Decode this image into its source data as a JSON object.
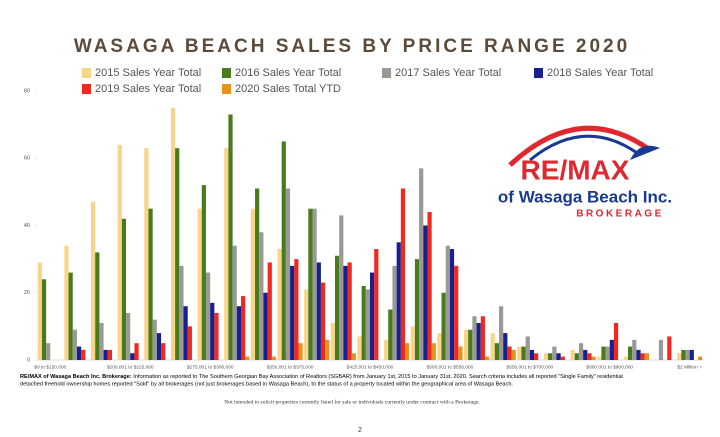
{
  "chart_data": {
    "type": "bar",
    "title": "WASAGA BEACH SALES BY PRICE RANGE 2020",
    "categories": [
      "$0 to $150,000",
      null,
      null,
      "$200,001 to $225,000",
      null,
      null,
      "$275,001 to $300,000",
      null,
      null,
      "$350,001 to $375,000",
      null,
      null,
      "$425,001 to $450,000",
      null,
      null,
      "$500,001 to $550,000",
      null,
      null,
      "$650,001 to $700,000",
      null,
      null,
      "$800,001 to $900,000",
      null,
      null,
      "$2 Million +"
    ],
    "series": [
      {
        "name": "2015 Sales Year Total",
        "color": "#f9d58a",
        "values": [
          29,
          34,
          47,
          64,
          63,
          75,
          45,
          63,
          45,
          33,
          21,
          11,
          7,
          6,
          10,
          8,
          9,
          8,
          4,
          2,
          3,
          1,
          1,
          0,
          2
        ]
      },
      {
        "name": "2016 Sales Year Total",
        "color": "#4a7a1e",
        "values": [
          24,
          26,
          32,
          42,
          45,
          63,
          52,
          73,
          51,
          65,
          45,
          31,
          22,
          15,
          30,
          20,
          9,
          5,
          4,
          2,
          2,
          4,
          4,
          0,
          3
        ]
      },
      {
        "name": "2017 Sales Year Total",
        "color": "#9a9a94",
        "values": [
          5,
          9,
          11,
          14,
          12,
          28,
          26,
          34,
          38,
          51,
          45,
          43,
          21,
          28,
          57,
          34,
          13,
          16,
          7,
          4,
          5,
          4,
          6,
          6,
          3
        ]
      },
      {
        "name": "2018 Sales Year Total",
        "color": "#1a1f8f",
        "values": [
          0,
          4,
          3,
          2,
          8,
          16,
          17,
          16,
          20,
          28,
          29,
          28,
          26,
          35,
          40,
          33,
          11,
          8,
          3,
          2,
          3,
          6,
          3,
          0,
          3
        ]
      },
      {
        "name": "2019 Sales Year Total",
        "color": "#f0281e",
        "values": [
          0,
          3,
          3,
          5,
          5,
          10,
          14,
          19,
          29,
          30,
          23,
          29,
          33,
          51,
          44,
          28,
          13,
          4,
          2,
          1,
          2,
          11,
          2,
          7,
          0
        ]
      },
      {
        "name": "2020 Sales Total YTD",
        "color": "#e8921e",
        "values": [
          0,
          0,
          0,
          0,
          0,
          0,
          0,
          1,
          1,
          5,
          6,
          2,
          0,
          5,
          5,
          4,
          1,
          3,
          0,
          0,
          1,
          0,
          2,
          0,
          1
        ]
      }
    ],
    "ylim": [
      0,
      80
    ],
    "yticks": [
      0,
      20,
      40,
      60,
      80
    ],
    "grid": false
  },
  "logo": {
    "line1": "RE/MAX",
    "line2": "of Wasaga Beach Inc.",
    "line3": "BROKERAGE"
  },
  "footnote": {
    "lead": "RE/MAX of Wasaga Beach Inc. Brokerage:",
    "line1": "Information as reported to The Southern Georgian Bay Association of Realtors (SGBAR) from January 1st, 2015 to January 31st, 2020. Search criteria includes all reported \"Single Family\" residential",
    "line2": "detached freehold ownership homes reported \"Sold\" by all brokerages (not just brokerages based in Wasaga Beach), to the status of a property located within the geographical area of Wasaga Beach."
  },
  "disclaimer": "Not intended to solicit properties currently listed for sale or individuals currently under contract with a Brokerage.",
  "page_number": "2"
}
